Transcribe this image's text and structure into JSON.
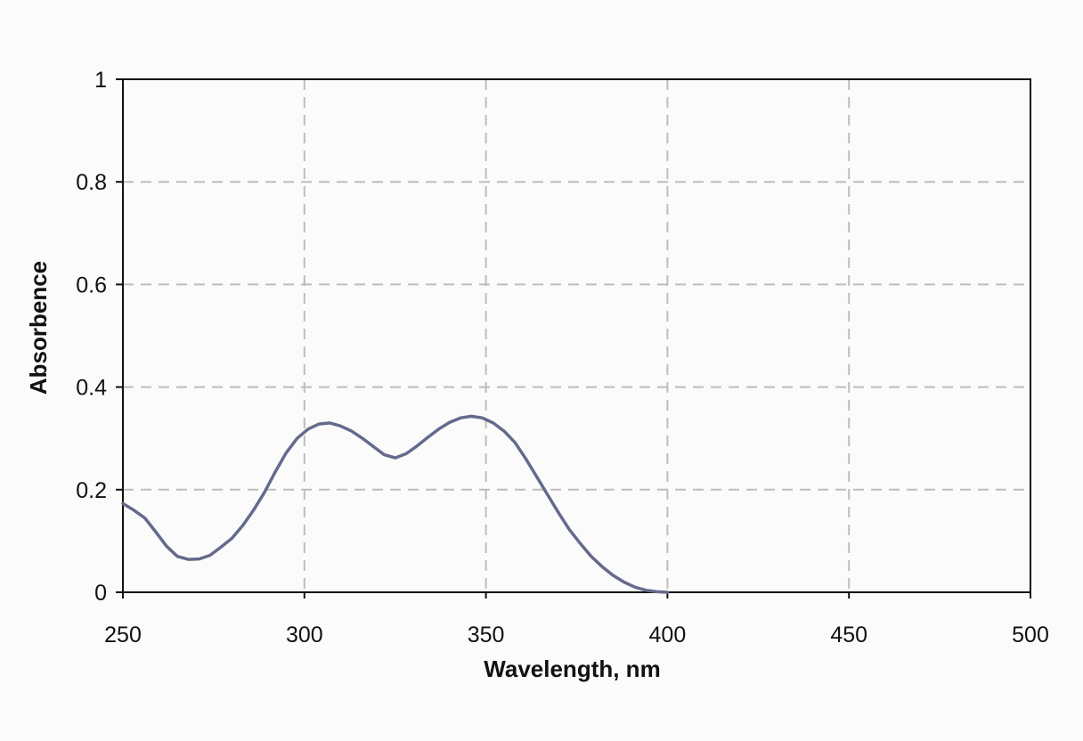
{
  "chart_data": {
    "type": "line",
    "title": "",
    "xlabel": "Wavelength, nm",
    "ylabel": "Absorbence",
    "xlim": [
      250,
      500
    ],
    "ylim": [
      0,
      1
    ],
    "xticks": [
      250,
      300,
      350,
      400,
      450,
      500
    ],
    "yticks": [
      0,
      0.2,
      0.4,
      0.6,
      0.8,
      1
    ],
    "xtick_labels": [
      "250",
      "300",
      "350",
      "400",
      "450",
      "500"
    ],
    "ytick_labels": [
      "0",
      "0.2",
      "0.4",
      "0.6",
      "0.8",
      "1"
    ],
    "grid": true,
    "grid_style": "dashed",
    "line_color": "#656a8c",
    "grid_color": "#bdbdbd",
    "series": [
      {
        "x": [
          250,
          253,
          256,
          259,
          262,
          265,
          268,
          271,
          274,
          277,
          280,
          283,
          286,
          289,
          292,
          295,
          298,
          301,
          304,
          307,
          310,
          313,
          316,
          319,
          322,
          325,
          328,
          331,
          334,
          337,
          340,
          343,
          346,
          349,
          352,
          355,
          358,
          361,
          364,
          367,
          370,
          373,
          376,
          379,
          382,
          385,
          388,
          391,
          394,
          397,
          400
        ],
        "y": [
          0.173,
          0.16,
          0.145,
          0.118,
          0.09,
          0.07,
          0.064,
          0.065,
          0.072,
          0.088,
          0.105,
          0.13,
          0.16,
          0.195,
          0.235,
          0.272,
          0.3,
          0.318,
          0.328,
          0.33,
          0.324,
          0.314,
          0.3,
          0.284,
          0.268,
          0.262,
          0.27,
          0.285,
          0.302,
          0.318,
          0.331,
          0.34,
          0.343,
          0.34,
          0.33,
          0.314,
          0.292,
          0.26,
          0.225,
          0.19,
          0.155,
          0.122,
          0.095,
          0.07,
          0.05,
          0.033,
          0.02,
          0.01,
          0.004,
          0.001,
          0.0
        ]
      }
    ]
  }
}
